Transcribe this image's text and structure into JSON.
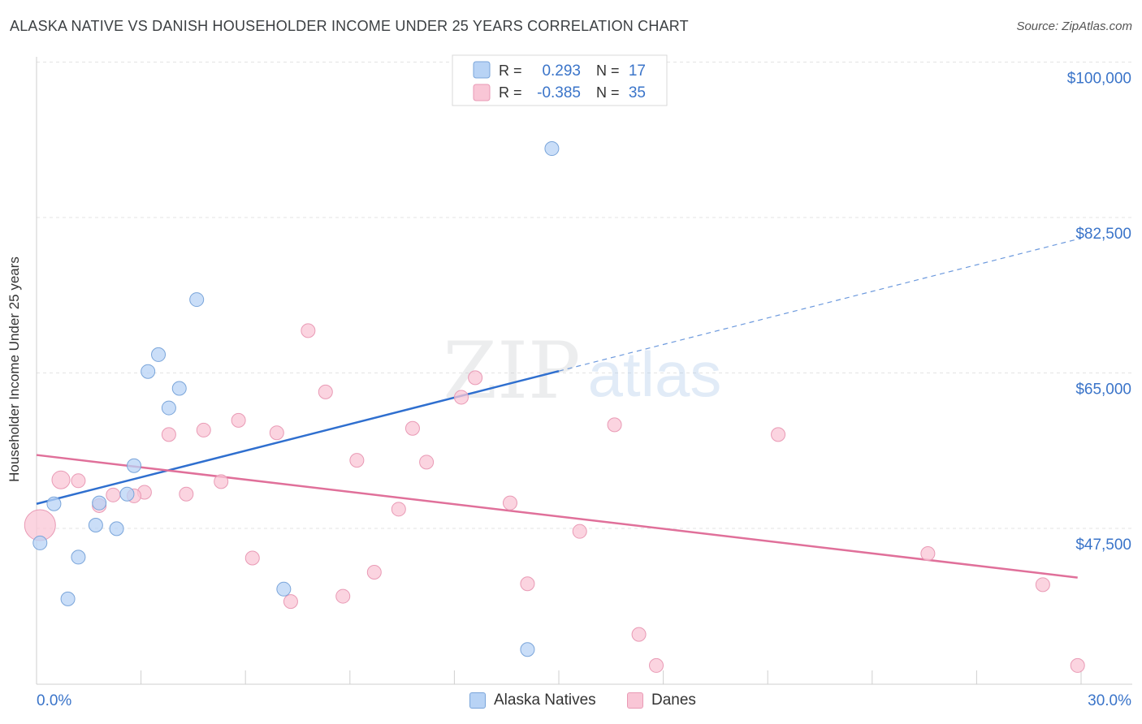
{
  "header": {
    "title": "ALASKA NATIVE VS DANISH HOUSEHOLDER INCOME UNDER 25 YEARS CORRELATION CHART",
    "source": "Source: ZipAtlas.com"
  },
  "watermark": {
    "zip": "ZIP",
    "atlas": "atlas"
  },
  "colors": {
    "blue_fill": "#b8d3f5",
    "blue_stroke": "#7aa5da",
    "blue_line": "#2f6fcf",
    "pink_fill": "#f9c6d6",
    "pink_stroke": "#e99ab5",
    "pink_line": "#e0709a",
    "axis_label_blue": "#3a74c9"
  },
  "chart_data": {
    "type": "scatter",
    "title": "ALASKA NATIVE VS DANISH HOUSEHOLDER INCOME UNDER 25 YEARS CORRELATION CHART",
    "xlabel": "",
    "ylabel": "Householder Income Under 25 years",
    "xlim": [
      0,
      30
    ],
    "ylim": [
      33000,
      102000
    ],
    "x_tick_labels": {
      "min": "0.0%",
      "max": "30.0%"
    },
    "y_ticks": [
      {
        "value": 100000,
        "label": "$100,000"
      },
      {
        "value": 82500,
        "label": "$82,500"
      },
      {
        "value": 65000,
        "label": "$65,000"
      },
      {
        "value": 47500,
        "label": "$47,500"
      }
    ],
    "grid": true,
    "legend_position": "top-center",
    "legend": [
      {
        "r_label": "R =",
        "r_value": "0.293",
        "n_label": "N =",
        "n_value": "17"
      },
      {
        "r_label": "R =",
        "r_value": "-0.385",
        "n_label": "N =",
        "n_value": "35"
      }
    ],
    "series": [
      {
        "name": "Alaska Natives",
        "points": [
          [
            0.1,
            47.6
          ],
          [
            0.5,
            52.0
          ],
          [
            1.2,
            46.0
          ],
          [
            0.9,
            41.3
          ],
          [
            1.7,
            49.6
          ],
          [
            2.3,
            49.2
          ],
          [
            1.8,
            52.1
          ],
          [
            2.6,
            53.1
          ],
          [
            2.8,
            56.3
          ],
          [
            3.2,
            66.9
          ],
          [
            3.5,
            68.8
          ],
          [
            3.8,
            62.8
          ],
          [
            4.1,
            65.0
          ],
          [
            4.6,
            75.0
          ],
          [
            7.1,
            42.4
          ],
          [
            14.1,
            35.6
          ],
          [
            14.8,
            92.0
          ]
        ],
        "trend": {
          "x0": 0,
          "y0": 52.0,
          "x_solid_end": 15.0,
          "x1": 30,
          "y1": 81.9
        }
      },
      {
        "name": "Danes",
        "points": [
          [
            0.1,
            49.6
          ],
          [
            0.7,
            54.7
          ],
          [
            1.2,
            54.6
          ],
          [
            1.8,
            51.8
          ],
          [
            2.2,
            53.0
          ],
          [
            3.1,
            53.3
          ],
          [
            2.8,
            52.9
          ],
          [
            3.8,
            59.8
          ],
          [
            4.3,
            53.1
          ],
          [
            4.8,
            60.3
          ],
          [
            5.3,
            54.5
          ],
          [
            5.8,
            61.4
          ],
          [
            6.2,
            45.9
          ],
          [
            6.9,
            60.0
          ],
          [
            7.3,
            41.0
          ],
          [
            7.8,
            71.5
          ],
          [
            8.3,
            64.6
          ],
          [
            8.8,
            41.6
          ],
          [
            9.2,
            56.9
          ],
          [
            9.7,
            44.3
          ],
          [
            10.4,
            51.4
          ],
          [
            10.8,
            60.5
          ],
          [
            11.2,
            56.7
          ],
          [
            12.2,
            64.0
          ],
          [
            12.6,
            66.2
          ],
          [
            13.6,
            52.1
          ],
          [
            14.1,
            43.0
          ],
          [
            15.6,
            48.9
          ],
          [
            16.6,
            60.9
          ],
          [
            17.3,
            37.3
          ],
          [
            17.8,
            33.8
          ],
          [
            21.3,
            59.8
          ],
          [
            25.6,
            46.4
          ],
          [
            28.9,
            42.9
          ],
          [
            29.9,
            33.8
          ]
        ],
        "trend": {
          "x0": 0,
          "y0": 57.5,
          "x1": 29.9,
          "y1": 43.7
        }
      }
    ],
    "y_units_note": "values in thousands of dollars"
  }
}
